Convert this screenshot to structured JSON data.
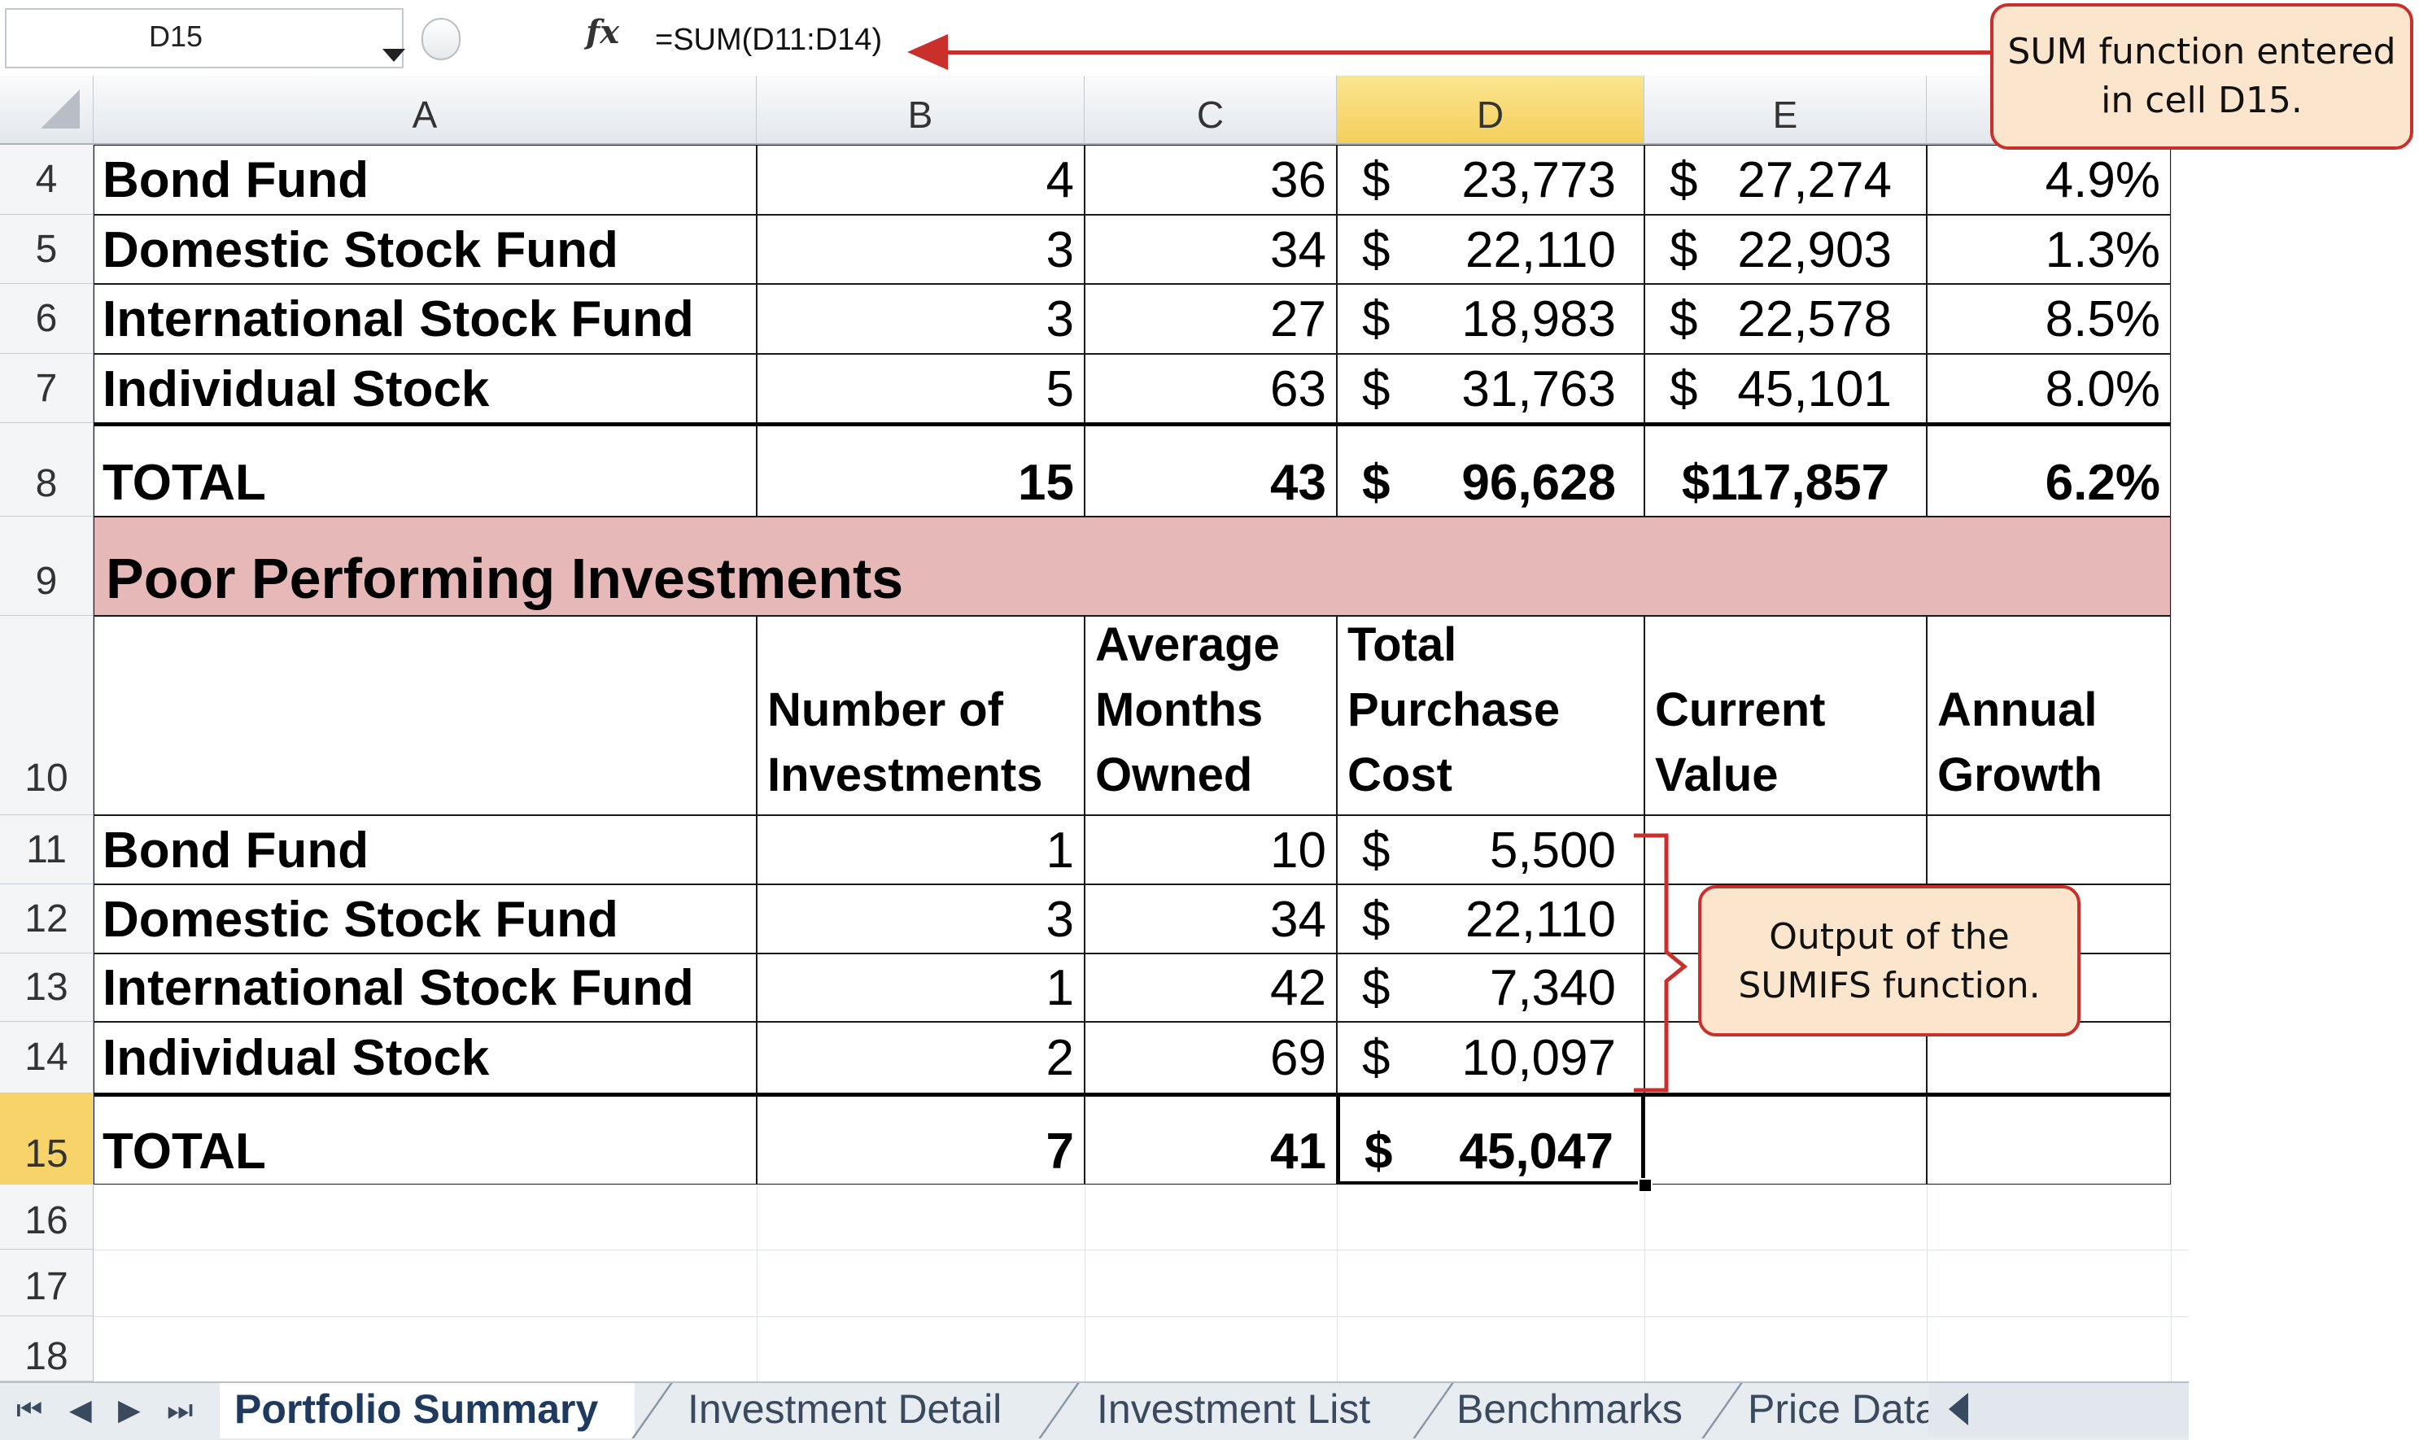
{
  "formula_bar": {
    "name_box": "D15",
    "fx_label": "fx",
    "formula": "=SUM(D11:D14)"
  },
  "columns": [
    "A",
    "B",
    "C",
    "D",
    "E"
  ],
  "rows": [
    "4",
    "5",
    "6",
    "7",
    "8",
    "9",
    "10",
    "11",
    "12",
    "13",
    "14",
    "15",
    "16",
    "17",
    "18"
  ],
  "top_table": {
    "rows": [
      {
        "name": "Bond Fund",
        "b": "4",
        "c": "36",
        "d": "23,773",
        "e": "27,274",
        "f": "4.9%"
      },
      {
        "name": "Domestic Stock Fund",
        "b": "3",
        "c": "34",
        "d": "22,110",
        "e": "22,903",
        "f": "1.3%"
      },
      {
        "name": "International Stock Fund",
        "b": "3",
        "c": "27",
        "d": "18,983",
        "e": "22,578",
        "f": "8.5%"
      },
      {
        "name": "Individual Stock",
        "b": "5",
        "c": "63",
        "d": "31,763",
        "e": "45,101",
        "f": "8.0%"
      }
    ],
    "total": {
      "name": "TOTAL",
      "b": "15",
      "c": "43",
      "d": "96,628",
      "e": "$117,857",
      "f": "6.2%"
    }
  },
  "section_title": "Poor Performing Investments",
  "bottom_headers": {
    "b": [
      "Number of",
      "Investments"
    ],
    "c": [
      "Average",
      "Months",
      "Owned"
    ],
    "d": [
      "Total",
      "Purchase",
      "Cost"
    ],
    "e": [
      "Current",
      "Value"
    ],
    "f": [
      "Annual",
      "Growth"
    ]
  },
  "bottom_table": {
    "rows": [
      {
        "name": "Bond Fund",
        "b": "1",
        "c": "10",
        "d": "5,500"
      },
      {
        "name": "Domestic Stock Fund",
        "b": "3",
        "c": "34",
        "d": "22,110"
      },
      {
        "name": "International Stock Fund",
        "b": "1",
        "c": "42",
        "d": "7,340"
      },
      {
        "name": "Individual Stock",
        "b": "2",
        "c": "69",
        "d": "10,097"
      }
    ],
    "total": {
      "name": "TOTAL",
      "b": "7",
      "c": "41",
      "d": "45,047"
    }
  },
  "currency_symbol": "$",
  "callouts": {
    "sum_function": [
      "SUM function entered",
      "in cell D15."
    ],
    "sumifs_output": [
      "Output of the",
      "SUMIFS function."
    ]
  },
  "sheet_tabs": [
    "Portfolio Summary",
    "Investment Detail",
    "Investment List",
    "Benchmarks",
    "Price Data"
  ],
  "active_tab": "Portfolio Summary",
  "colors": {
    "section_fill": "#e6b8b7",
    "selected_header": "#f7d36a",
    "callout_fill": "#fce5cd",
    "callout_border": "#c9302c"
  }
}
